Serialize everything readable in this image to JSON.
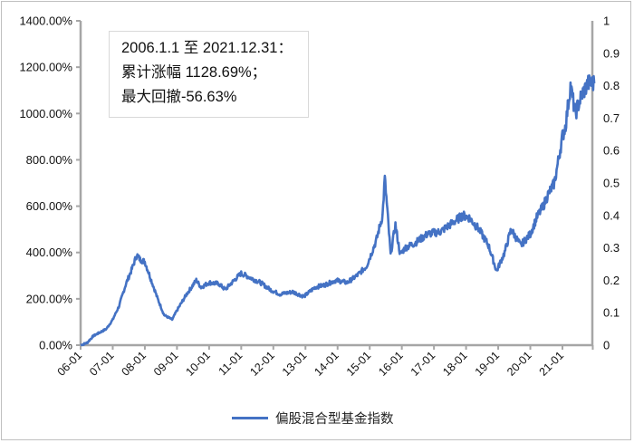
{
  "chart_data": {
    "type": "line",
    "title": "",
    "xlabel": "",
    "ylabel": "",
    "y2label": "",
    "ylim": [
      0,
      1400
    ],
    "y2lim": [
      0,
      1
    ],
    "grid": false,
    "legend_position": "bottom",
    "y_ticks": [
      "0.00%",
      "200.00%",
      "400.00%",
      "600.00%",
      "800.00%",
      "1000.00%",
      "1200.00%",
      "1400.00%"
    ],
    "y2_ticks": [
      "0",
      "0.1",
      "0.2",
      "0.3",
      "0.4",
      "0.5",
      "0.6",
      "0.7",
      "0.8",
      "0.9",
      "1"
    ],
    "x_ticks": [
      "06-01",
      "07-01",
      "08-01",
      "09-01",
      "10-01",
      "11-01",
      "12-01",
      "13-01",
      "14-01",
      "15-01",
      "16-01",
      "17-01",
      "18-01",
      "19-01",
      "20-01",
      "21-01"
    ],
    "annotation": {
      "line1": "2006.1.1 至 2021.12.31：",
      "line2": "累计涨幅 1128.69%；",
      "line3": "最大回撤-56.63%"
    },
    "series": [
      {
        "name": "偏股混合型基金指数",
        "color": "#4472c4",
        "axis": "left",
        "unit": "%",
        "x": [
          2006.0,
          2006.2,
          2006.4,
          2006.6,
          2006.8,
          2007.0,
          2007.2,
          2007.4,
          2007.6,
          2007.75,
          2007.85,
          2008.0,
          2008.2,
          2008.4,
          2008.6,
          2008.85,
          2009.0,
          2009.3,
          2009.6,
          2009.75,
          2010.0,
          2010.3,
          2010.5,
          2010.85,
          2011.0,
          2011.3,
          2011.6,
          2011.9,
          2012.2,
          2012.6,
          2012.95,
          2013.3,
          2013.6,
          2013.95,
          2014.3,
          2014.6,
          2014.9,
          2015.2,
          2015.4,
          2015.47,
          2015.55,
          2015.65,
          2015.8,
          2015.95,
          2016.1,
          2016.4,
          2016.8,
          2017.2,
          2017.5,
          2017.9,
          2018.1,
          2018.4,
          2018.7,
          2018.95,
          2019.2,
          2019.4,
          2019.7,
          2020.0,
          2020.2,
          2020.4,
          2020.55,
          2020.75,
          2021.0,
          2021.1,
          2021.25,
          2021.4,
          2021.6,
          2021.8,
          2021.99
        ],
        "values": [
          0,
          10,
          40,
          55,
          70,
          110,
          170,
          260,
          330,
          390,
          370,
          360,
          280,
          200,
          130,
          110,
          150,
          220,
          280,
          250,
          270,
          265,
          240,
          290,
          310,
          290,
          270,
          240,
          220,
          230,
          210,
          250,
          260,
          280,
          270,
          300,
          340,
          450,
          560,
          720,
          580,
          390,
          520,
          390,
          420,
          440,
          480,
          490,
          520,
          560,
          550,
          500,
          430,
          320,
          400,
          500,
          430,
          480,
          550,
          600,
          650,
          700,
          900,
          950,
          1120,
          1000,
          1080,
          1130,
          1130
        ]
      }
    ]
  }
}
